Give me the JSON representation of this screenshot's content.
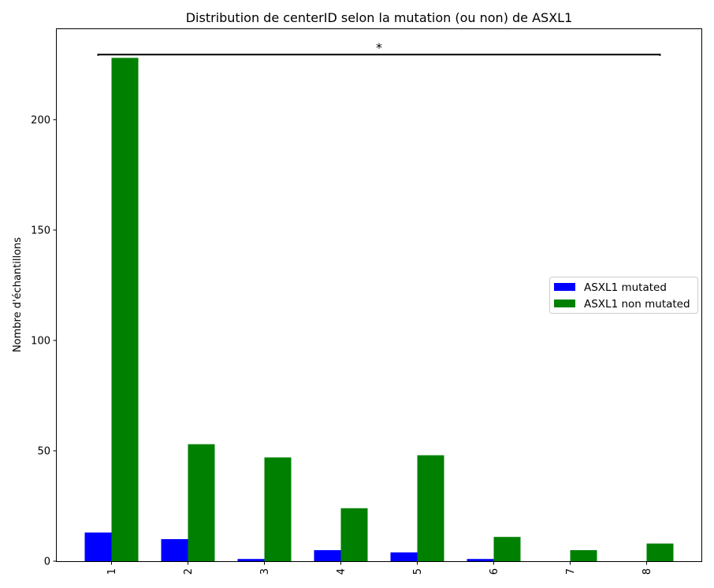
{
  "chart_data": {
    "type": "bar",
    "title": "Distribution de centerID selon la mutation (ou non) de ASXL1",
    "xlabel": "",
    "ylabel": "Nombre d'échantillons",
    "categories": [
      "1",
      "2",
      "3",
      "4",
      "5",
      "6",
      "7",
      "8"
    ],
    "series": [
      {
        "name": "ASXL1 mutated",
        "color": "#0000ff",
        "values": [
          13,
          10,
          1,
          5,
          4,
          1,
          0,
          0
        ]
      },
      {
        "name": "ASXL1 non mutated",
        "color": "#008000",
        "values": [
          228,
          53,
          47,
          24,
          48,
          11,
          5,
          8
        ]
      }
    ],
    "ylim": [
      0,
      241
    ],
    "yticks": [
      0,
      50,
      100,
      150,
      200
    ],
    "grid": false,
    "legend_position": "center-right",
    "annotation": {
      "text": "*",
      "y": 229.5,
      "from_category": "1",
      "to_category": "8"
    }
  }
}
